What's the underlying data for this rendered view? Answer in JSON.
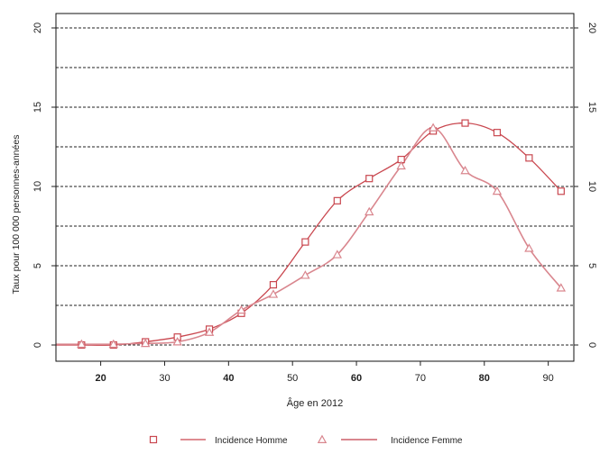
{
  "chart_data": {
    "type": "line",
    "xlabel": "Âge en 2012",
    "ylabel": "Taux pour 100 000 personnes-années",
    "xlim": [
      13,
      94
    ],
    "ylim": [
      0,
      20
    ],
    "x_ticks": [
      20,
      30,
      40,
      50,
      60,
      70,
      80,
      90
    ],
    "y_ticks": [
      0,
      5,
      10,
      15,
      20
    ],
    "gridlines": [
      0,
      2.5,
      5,
      7.5,
      10,
      12.5,
      15,
      17.5,
      20
    ],
    "grid": "horizontal dashed",
    "right_axis": true,
    "legend_position": "bottom",
    "series": [
      {
        "name": "Incidence Homme",
        "marker": "square",
        "color": "#c9474f",
        "x": [
          17,
          22,
          27,
          32,
          37,
          42,
          47,
          52,
          57,
          62,
          67,
          72,
          77,
          82,
          87,
          92
        ],
        "y": [
          0,
          0,
          0.2,
          0.5,
          1.0,
          2.0,
          3.8,
          6.5,
          9.1,
          10.5,
          11.7,
          13.5,
          14.0,
          13.4,
          11.8,
          9.7
        ]
      },
      {
        "name": "Incidence Femme",
        "marker": "triangle",
        "color": "#d9868e",
        "x": [
          17,
          22,
          27,
          32,
          37,
          42,
          47,
          52,
          57,
          62,
          67,
          72,
          77,
          82,
          87,
          92
        ],
        "y": [
          0.05,
          0.05,
          0.1,
          0.2,
          0.8,
          2.2,
          3.2,
          4.4,
          5.7,
          8.4,
          11.3,
          13.7,
          11.0,
          9.7,
          6.1,
          3.6
        ]
      }
    ]
  }
}
